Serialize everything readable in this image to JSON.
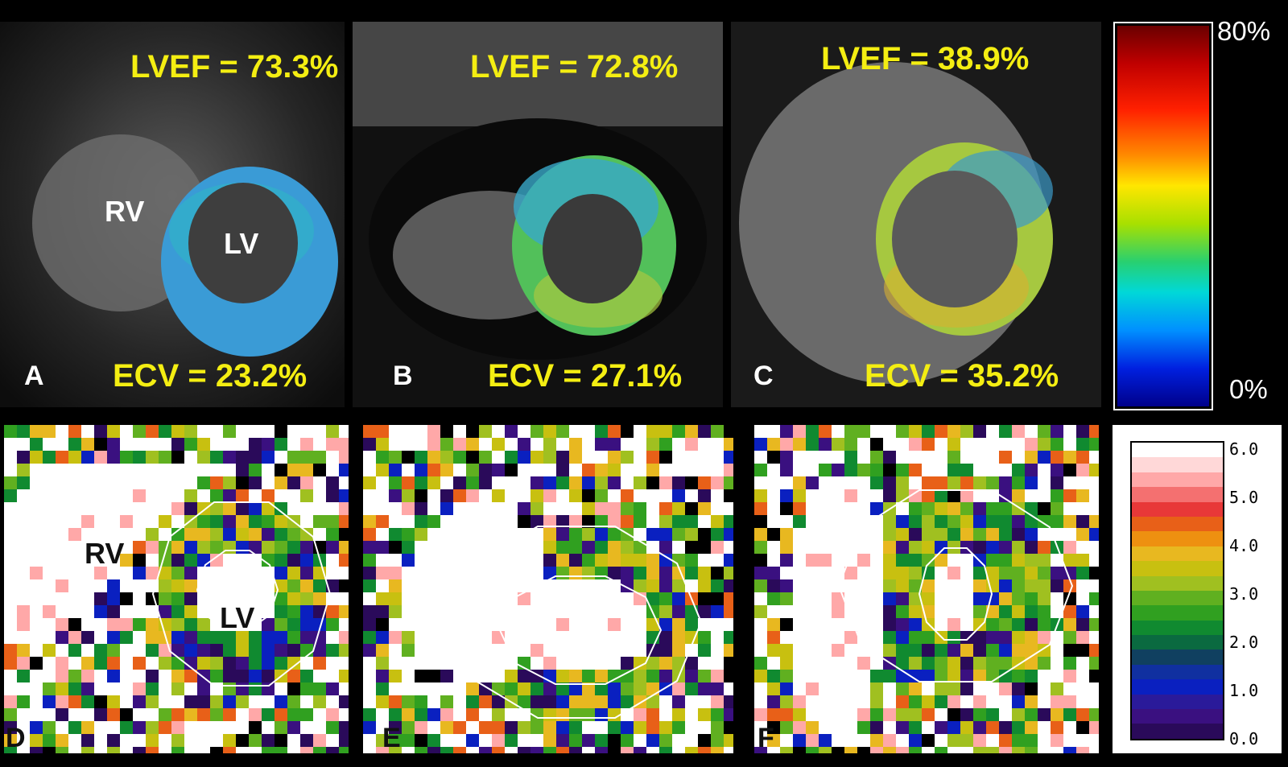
{
  "panels": {
    "a": {
      "letter": "A",
      "lvef": "LVEF = 73.3%",
      "ecv": "ECV = 23.2%",
      "rv": "RV",
      "lv": "LV"
    },
    "b": {
      "letter": "B",
      "lvef": "LVEF = 72.8%",
      "ecv": "ECV = 27.1%"
    },
    "c": {
      "letter": "C",
      "lvef": "LVEF = 38.9%",
      "ecv": "ECV = 35.2%"
    },
    "d": {
      "letter": "D",
      "rv": "RV",
      "lv": "LV"
    },
    "e": {
      "letter": "E"
    },
    "f": {
      "letter": "F"
    }
  },
  "ecv_scale": {
    "max": "80%",
    "min": "0%"
  },
  "t1_scale": {
    "ticks": [
      "6.0",
      "5.0",
      "4.0",
      "3.0",
      "2.0",
      "1.0",
      "0.0"
    ]
  }
}
